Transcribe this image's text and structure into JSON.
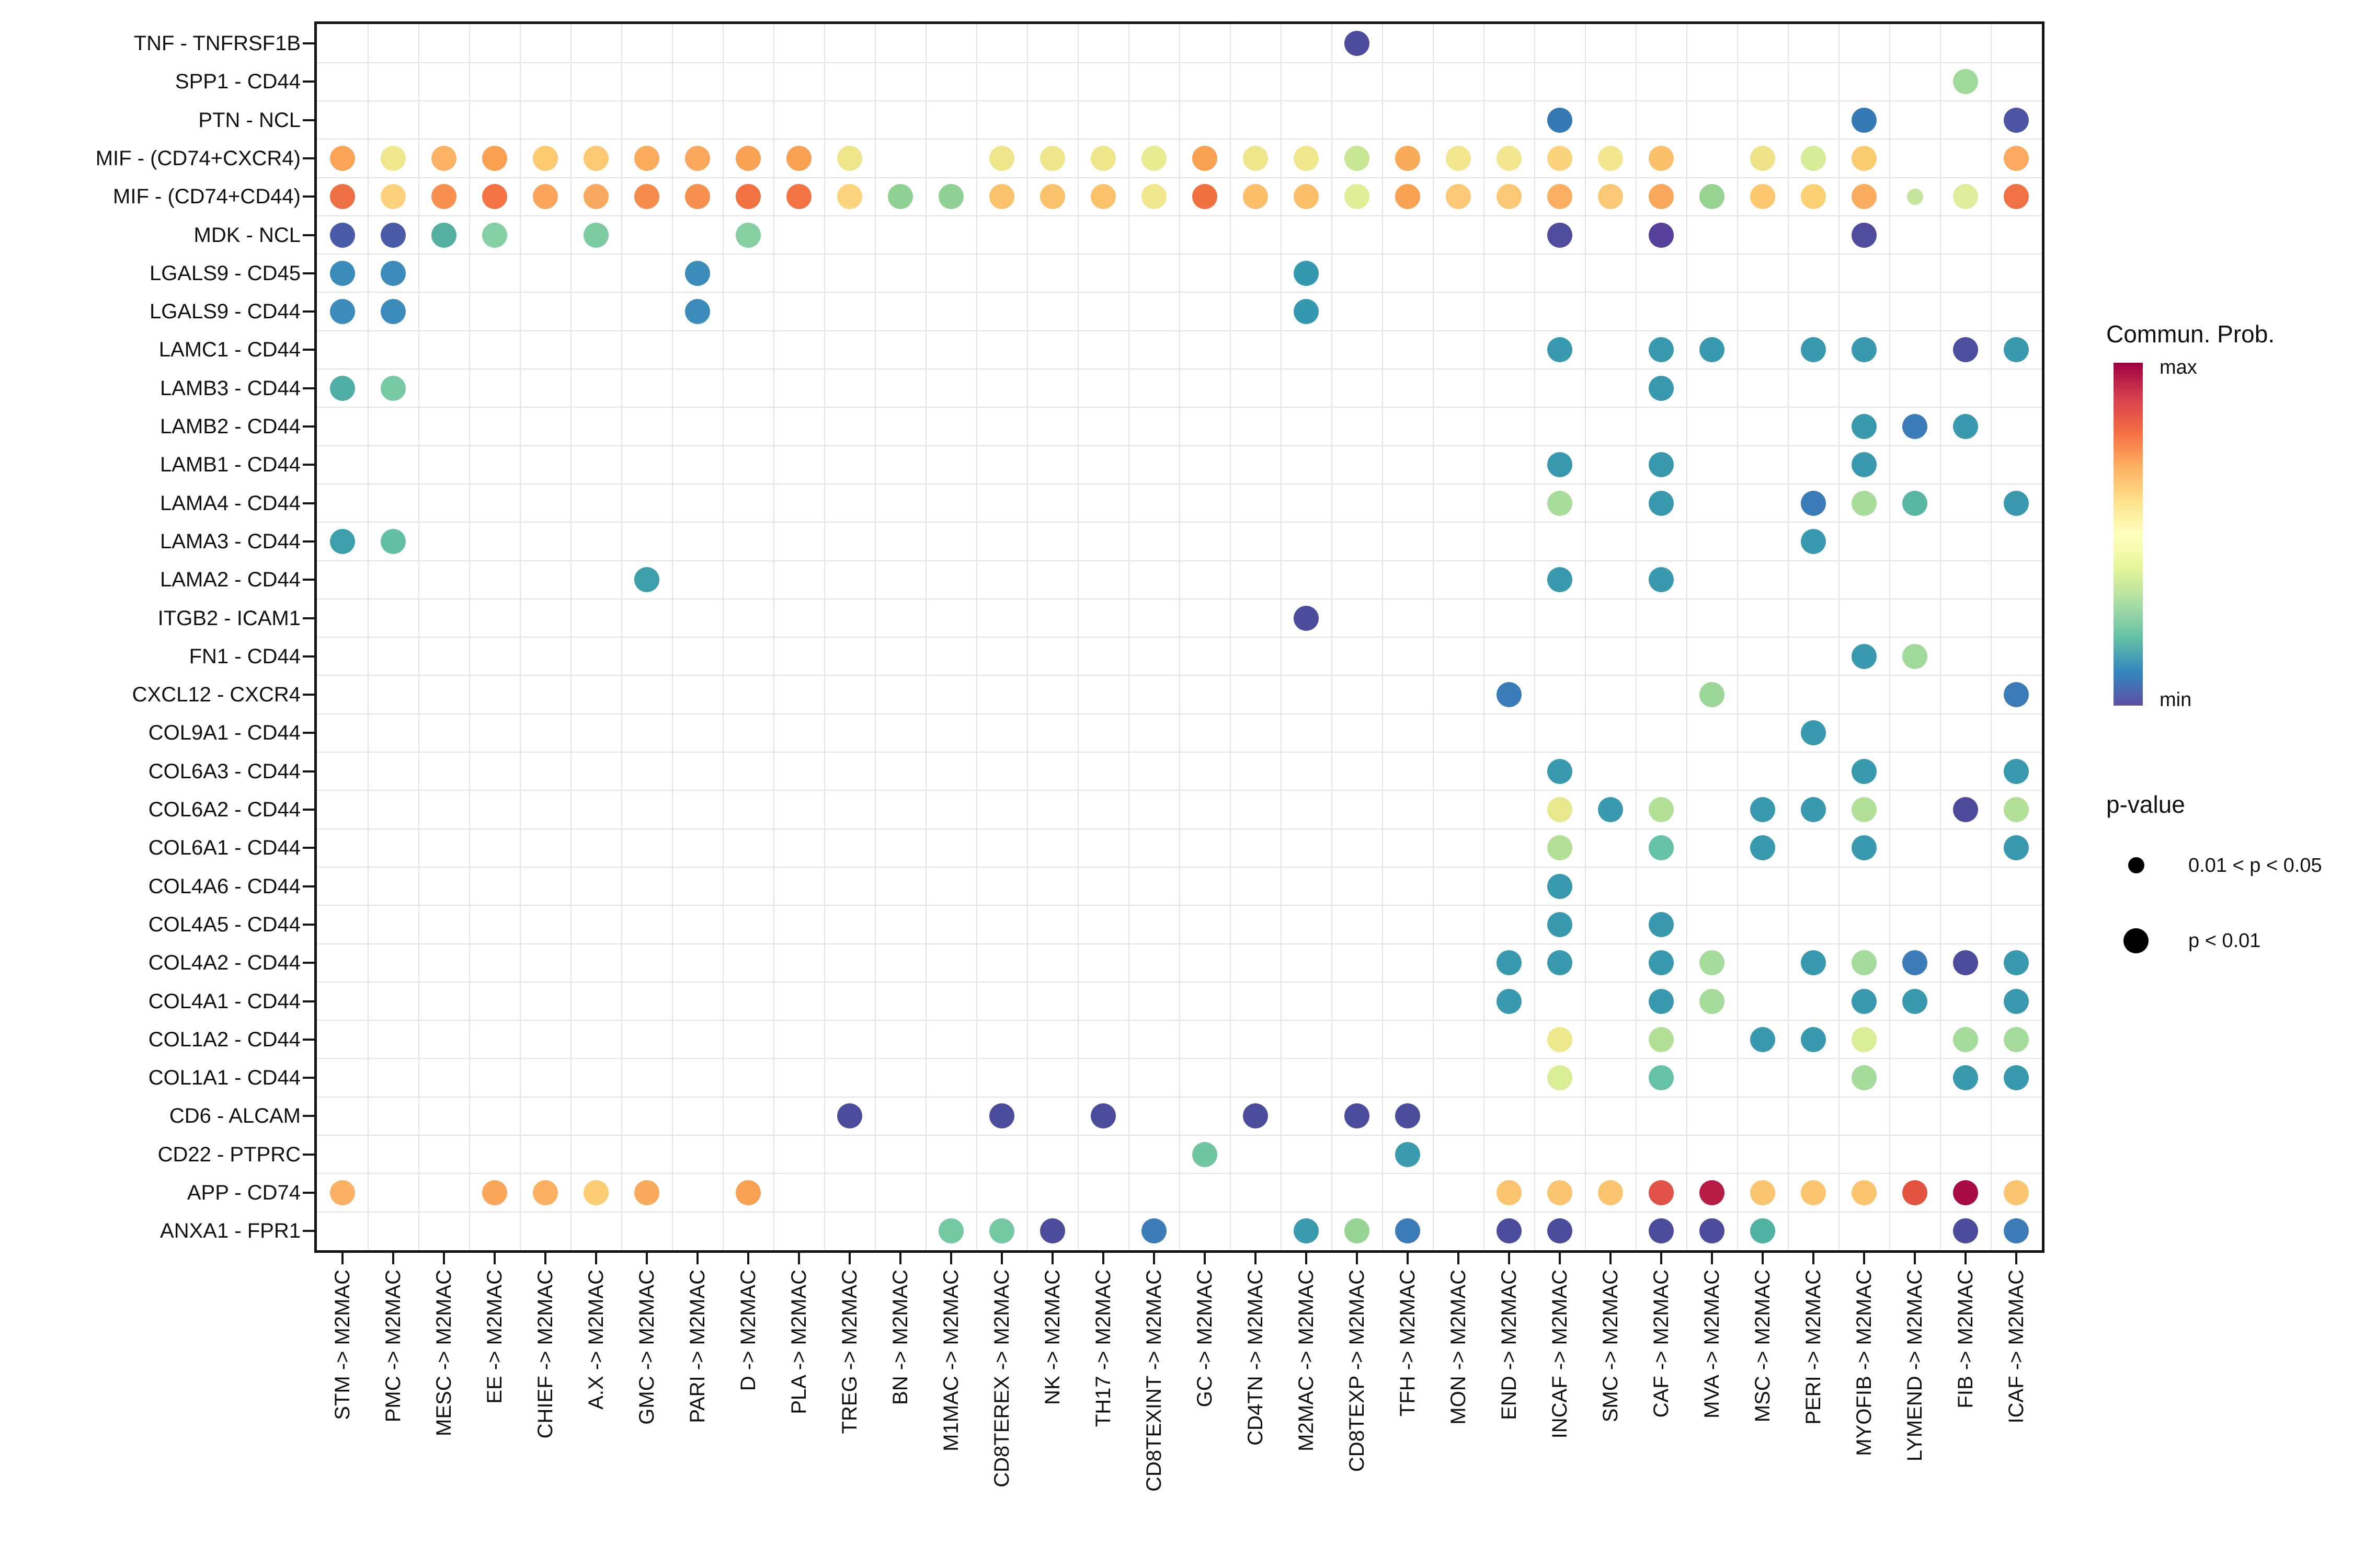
{
  "legend": {
    "colorbar_title": "Commun. Prob.",
    "max_label": "max",
    "min_label": "min",
    "pvalue_title": "p-value",
    "pvalue_small_label": "0.01 < p < 0.05",
    "pvalue_large_label": "p < 0.01",
    "colorbar_stops": [
      "#9E0142",
      "#D53E4F",
      "#F46D43",
      "#FDAE61",
      "#FEE08B",
      "#FFFFBF",
      "#E6F598",
      "#ABDDA4",
      "#66C2A5",
      "#3288BD",
      "#5E4FA2"
    ]
  },
  "chart_data": {
    "type": "scatter",
    "subtype": "bubble-matrix (CellChat ligand-receptor dot plot)",
    "title": "",
    "xlabel": "",
    "ylabel": "",
    "grid": "between-categories",
    "legend_position": "right",
    "color_meaning": "communication probability, Spectral reversed: min=#5E4FA2 (blue-purple) to max=#9E0142 (dark red)",
    "size_meaning": {
      "small": "0.01 < p < 0.05",
      "large": "p < 0.01"
    },
    "rows": [
      "TNF - TNFRSF1B",
      "SPP1 - CD44",
      "PTN - NCL",
      "MIF - (CD74+CXCR4)",
      "MIF - (CD74+CD44)",
      "MDK - NCL",
      "LGALS9 - CD45",
      "LGALS9 - CD44",
      "LAMC1 - CD44",
      "LAMB3 - CD44",
      "LAMB2 - CD44",
      "LAMB1 - CD44",
      "LAMA4 - CD44",
      "LAMA3 - CD44",
      "LAMA2 - CD44",
      "ITGB2 - ICAM1",
      "FN1 - CD44",
      "CXCL12 - CXCR4",
      "COL9A1 - CD44",
      "COL6A3 - CD44",
      "COL6A2 - CD44",
      "COL6A1 - CD44",
      "COL4A6 - CD44",
      "COL4A5 - CD44",
      "COL4A2 - CD44",
      "COL4A1 - CD44",
      "COL1A2 - CD44",
      "COL1A1 - CD44",
      "CD6 - ALCAM",
      "CD22 - PTPRC",
      "APP - CD74",
      "ANXA1 - FPR1"
    ],
    "columns": [
      "STM -> M2MAC",
      "PMC -> M2MAC",
      "MESC -> M2MAC",
      "EE -> M2MAC",
      "CHIEF -> M2MAC",
      "A.X -> M2MAC",
      "GMC -> M2MAC",
      "PARI -> M2MAC",
      "D -> M2MAC",
      "PLA -> M2MAC",
      "TREG -> M2MAC",
      "BN -> M2MAC",
      "M1MAC -> M2MAC",
      "CD8TEREX -> M2MAC",
      "NK -> M2MAC",
      "TH17 -> M2MAC",
      "CD8TEXINT -> M2MAC",
      "GC -> M2MAC",
      "CD4TN -> M2MAC",
      "M2MAC -> M2MAC",
      "CD8TEXP -> M2MAC",
      "TFH -> M2MAC",
      "MON -> M2MAC",
      "END -> M2MAC",
      "INCAF -> M2MAC",
      "SMC -> M2MAC",
      "CAF -> M2MAC",
      "MVA -> M2MAC",
      "MSC -> M2MAC",
      "PERI -> M2MAC",
      "MYOFIB -> M2MAC",
      "LYMEND -> M2MAC",
      "FIB -> M2MAC",
      "ICAF -> M2MAC"
    ],
    "points_format": "[rowIndex, colIndex, colorHex, sizeClass(l=p<0.01, s=0.01<p<0.05)]",
    "points": [
      [
        0,
        20,
        "#4B4C9B",
        "l"
      ],
      [
        1,
        32,
        "#A0DA9A",
        "l"
      ],
      [
        2,
        24,
        "#3579B5",
        "l"
      ],
      [
        2,
        30,
        "#3579B5",
        "l"
      ],
      [
        2,
        33,
        "#4C55A3",
        "l"
      ],
      [
        3,
        0,
        "#FAA558",
        "l"
      ],
      [
        3,
        1,
        "#F0E68B",
        "l"
      ],
      [
        3,
        2,
        "#FBB264",
        "l"
      ],
      [
        3,
        3,
        "#F9A051",
        "l"
      ],
      [
        3,
        4,
        "#FCC96F",
        "l"
      ],
      [
        3,
        5,
        "#FCC973",
        "l"
      ],
      [
        3,
        6,
        "#FAAB5C",
        "l"
      ],
      [
        3,
        7,
        "#FAA85D",
        "l"
      ],
      [
        3,
        8,
        "#F9A254",
        "l"
      ],
      [
        3,
        9,
        "#F9A152",
        "l"
      ],
      [
        3,
        10,
        "#EFE68B",
        "l"
      ],
      [
        3,
        13,
        "#EFE68B",
        "l"
      ],
      [
        3,
        14,
        "#EFE68B",
        "l"
      ],
      [
        3,
        15,
        "#EFE68B",
        "l"
      ],
      [
        3,
        16,
        "#E8EC90",
        "l"
      ],
      [
        3,
        17,
        "#F9A153",
        "l"
      ],
      [
        3,
        18,
        "#EFE68B",
        "l"
      ],
      [
        3,
        19,
        "#F0E78C",
        "l"
      ],
      [
        3,
        20,
        "#C8E795",
        "l"
      ],
      [
        3,
        21,
        "#FAAB5A",
        "l"
      ],
      [
        3,
        22,
        "#F2E78F",
        "l"
      ],
      [
        3,
        23,
        "#F2E78F",
        "l"
      ],
      [
        3,
        24,
        "#FBD37A",
        "l"
      ],
      [
        3,
        25,
        "#F2E78F",
        "l"
      ],
      [
        3,
        26,
        "#FBC06A",
        "l"
      ],
      [
        3,
        28,
        "#EFE289",
        "l"
      ],
      [
        3,
        29,
        "#D7EC96",
        "l"
      ],
      [
        3,
        30,
        "#FBCC6F",
        "l"
      ],
      [
        3,
        33,
        "#FBAA60",
        "l"
      ],
      [
        4,
        0,
        "#F07046",
        "l"
      ],
      [
        4,
        1,
        "#FCD27C",
        "l"
      ],
      [
        4,
        2,
        "#F89150",
        "l"
      ],
      [
        4,
        3,
        "#F37442",
        "l"
      ],
      [
        4,
        4,
        "#FAA55B",
        "l"
      ],
      [
        4,
        5,
        "#FAAA5F",
        "l"
      ],
      [
        4,
        6,
        "#F68C4B",
        "l"
      ],
      [
        4,
        7,
        "#F78F4E",
        "l"
      ],
      [
        4,
        8,
        "#F27141",
        "l"
      ],
      [
        4,
        9,
        "#F27442",
        "l"
      ],
      [
        4,
        10,
        "#FCD47E",
        "l"
      ],
      [
        4,
        11,
        "#90D295",
        "l"
      ],
      [
        4,
        12,
        "#90D295",
        "l"
      ],
      [
        4,
        13,
        "#FBC26C",
        "l"
      ],
      [
        4,
        14,
        "#FBC26C",
        "l"
      ],
      [
        4,
        15,
        "#FBC26C",
        "l"
      ],
      [
        4,
        16,
        "#F0E78C",
        "l"
      ],
      [
        4,
        17,
        "#F0703F",
        "l"
      ],
      [
        4,
        18,
        "#FBBE69",
        "l"
      ],
      [
        4,
        19,
        "#FBBE69",
        "l"
      ],
      [
        4,
        20,
        "#E0EE95",
        "l"
      ],
      [
        4,
        21,
        "#F9A352",
        "l"
      ],
      [
        4,
        22,
        "#FBC876",
        "l"
      ],
      [
        4,
        23,
        "#FBC876",
        "l"
      ],
      [
        4,
        24,
        "#FAAF63",
        "l"
      ],
      [
        4,
        25,
        "#FBC876",
        "l"
      ],
      [
        4,
        26,
        "#FAA95C",
        "l"
      ],
      [
        4,
        27,
        "#97D491",
        "l"
      ],
      [
        4,
        28,
        "#FBC76F",
        "l"
      ],
      [
        4,
        29,
        "#FBD173",
        "l"
      ],
      [
        4,
        30,
        "#FAAD5E",
        "l"
      ],
      [
        4,
        31,
        "#C3E69A",
        "s"
      ],
      [
        4,
        32,
        "#DDED9B",
        "l"
      ],
      [
        4,
        33,
        "#F07143",
        "l"
      ],
      [
        5,
        0,
        "#4A5CA7",
        "l"
      ],
      [
        5,
        1,
        "#4A5CA7",
        "l"
      ],
      [
        5,
        2,
        "#53AFA0",
        "l"
      ],
      [
        5,
        3,
        "#84CFA4",
        "l"
      ],
      [
        5,
        5,
        "#7CCBA1",
        "l"
      ],
      [
        5,
        8,
        "#85CFA0",
        "l"
      ],
      [
        5,
        24,
        "#4F4C9D",
        "l"
      ],
      [
        5,
        26,
        "#55409B",
        "l"
      ],
      [
        5,
        30,
        "#4F4C9D",
        "l"
      ],
      [
        6,
        0,
        "#3C8CBB",
        "l"
      ],
      [
        6,
        1,
        "#3C8CBB",
        "l"
      ],
      [
        6,
        7,
        "#3C8CBB",
        "l"
      ],
      [
        6,
        19,
        "#3598B1",
        "l"
      ],
      [
        7,
        0,
        "#3C8CBB",
        "l"
      ],
      [
        7,
        1,
        "#3C8CBB",
        "l"
      ],
      [
        7,
        7,
        "#3C8CBB",
        "l"
      ],
      [
        7,
        19,
        "#3598B1",
        "l"
      ],
      [
        8,
        24,
        "#399AAF",
        "l"
      ],
      [
        8,
        26,
        "#399AAF",
        "l"
      ],
      [
        8,
        27,
        "#399AAF",
        "l"
      ],
      [
        8,
        29,
        "#399AAF",
        "l"
      ],
      [
        8,
        30,
        "#399AAF",
        "l"
      ],
      [
        8,
        32,
        "#4B4F9E",
        "l"
      ],
      [
        8,
        33,
        "#399AAF",
        "l"
      ],
      [
        9,
        0,
        "#4FAFA6",
        "l"
      ],
      [
        9,
        1,
        "#77CBA4",
        "l"
      ],
      [
        9,
        26,
        "#399AAF",
        "l"
      ],
      [
        10,
        30,
        "#399AAF",
        "l"
      ],
      [
        10,
        31,
        "#3C7CB8",
        "l"
      ],
      [
        10,
        32,
        "#399AAF",
        "l"
      ],
      [
        11,
        24,
        "#399AAF",
        "l"
      ],
      [
        11,
        26,
        "#399AAF",
        "l"
      ],
      [
        11,
        30,
        "#399AAF",
        "l"
      ],
      [
        12,
        24,
        "#A8DC9A",
        "l"
      ],
      [
        12,
        26,
        "#399AAF",
        "l"
      ],
      [
        12,
        29,
        "#3B7CB8",
        "l"
      ],
      [
        12,
        30,
        "#A8DC9A",
        "l"
      ],
      [
        12,
        31,
        "#58B8A4",
        "l"
      ],
      [
        12,
        33,
        "#399AAF",
        "l"
      ],
      [
        13,
        0,
        "#3C9FAC",
        "l"
      ],
      [
        13,
        1,
        "#62BFA2",
        "l"
      ],
      [
        13,
        29,
        "#399AAF",
        "l"
      ],
      [
        14,
        6,
        "#3C9FAC",
        "l"
      ],
      [
        14,
        24,
        "#399AAF",
        "l"
      ],
      [
        14,
        26,
        "#399AAF",
        "l"
      ],
      [
        15,
        19,
        "#4B4C9B",
        "l"
      ],
      [
        16,
        30,
        "#399AAF",
        "l"
      ],
      [
        16,
        31,
        "#A0DA9A",
        "l"
      ],
      [
        17,
        23,
        "#3B7CB8",
        "l"
      ],
      [
        17,
        27,
        "#9AD697",
        "l"
      ],
      [
        17,
        33,
        "#3B7CB8",
        "l"
      ],
      [
        18,
        29,
        "#399AAF",
        "l"
      ],
      [
        19,
        24,
        "#399AAF",
        "l"
      ],
      [
        19,
        30,
        "#399AAF",
        "l"
      ],
      [
        19,
        33,
        "#399AAF",
        "l"
      ],
      [
        20,
        24,
        "#E7E88D",
        "l"
      ],
      [
        20,
        25,
        "#399AAF",
        "l"
      ],
      [
        20,
        26,
        "#B2E097",
        "l"
      ],
      [
        20,
        28,
        "#399AAF",
        "l"
      ],
      [
        20,
        29,
        "#399AAF",
        "l"
      ],
      [
        20,
        30,
        "#B2E097",
        "l"
      ],
      [
        20,
        32,
        "#4D4A9C",
        "l"
      ],
      [
        20,
        33,
        "#B2E097",
        "l"
      ],
      [
        21,
        24,
        "#B2E097",
        "l"
      ],
      [
        21,
        26,
        "#66C2A4",
        "l"
      ],
      [
        21,
        28,
        "#399AAF",
        "l"
      ],
      [
        21,
        30,
        "#399AAF",
        "l"
      ],
      [
        21,
        33,
        "#399AAF",
        "l"
      ],
      [
        22,
        24,
        "#399AAF",
        "l"
      ],
      [
        23,
        24,
        "#399AAF",
        "l"
      ],
      [
        23,
        26,
        "#399AAF",
        "l"
      ],
      [
        24,
        23,
        "#399AAF",
        "l"
      ],
      [
        24,
        24,
        "#399AAF",
        "l"
      ],
      [
        24,
        26,
        "#399AAF",
        "l"
      ],
      [
        24,
        27,
        "#A5DB9B",
        "l"
      ],
      [
        24,
        29,
        "#399AAF",
        "l"
      ],
      [
        24,
        30,
        "#A5DB9B",
        "l"
      ],
      [
        24,
        31,
        "#3C7CB8",
        "l"
      ],
      [
        24,
        32,
        "#4B4C9B",
        "l"
      ],
      [
        24,
        33,
        "#399AAF",
        "l"
      ],
      [
        25,
        23,
        "#399AAF",
        "l"
      ],
      [
        25,
        26,
        "#399AAF",
        "l"
      ],
      [
        25,
        27,
        "#A5DB9B",
        "l"
      ],
      [
        25,
        30,
        "#399AAF",
        "l"
      ],
      [
        25,
        31,
        "#399AAF",
        "l"
      ],
      [
        25,
        33,
        "#399AAF",
        "l"
      ],
      [
        26,
        24,
        "#EDE88C",
        "l"
      ],
      [
        26,
        26,
        "#B2E097",
        "l"
      ],
      [
        26,
        28,
        "#399AAF",
        "l"
      ],
      [
        26,
        29,
        "#399AAF",
        "l"
      ],
      [
        26,
        30,
        "#D9EE94",
        "l"
      ],
      [
        26,
        32,
        "#A5DB9B",
        "l"
      ],
      [
        26,
        33,
        "#A5DB9B",
        "l"
      ],
      [
        27,
        24,
        "#D9EE94",
        "l"
      ],
      [
        27,
        26,
        "#66C2A4",
        "l"
      ],
      [
        27,
        30,
        "#A5DB9B",
        "l"
      ],
      [
        27,
        32,
        "#399AAF",
        "l"
      ],
      [
        27,
        33,
        "#399AAF",
        "l"
      ],
      [
        28,
        10,
        "#4B4C9B",
        "l"
      ],
      [
        28,
        13,
        "#4B4C9B",
        "l"
      ],
      [
        28,
        15,
        "#4B4C9B",
        "l"
      ],
      [
        28,
        18,
        "#4B4C9B",
        "l"
      ],
      [
        28,
        20,
        "#4B4C9B",
        "l"
      ],
      [
        28,
        21,
        "#4B4C9B",
        "l"
      ],
      [
        29,
        17,
        "#6FC6A0",
        "l"
      ],
      [
        29,
        21,
        "#3A9AAE",
        "l"
      ],
      [
        30,
        0,
        "#FBB163",
        "l"
      ],
      [
        30,
        3,
        "#FAA75A",
        "l"
      ],
      [
        30,
        4,
        "#FBB061",
        "l"
      ],
      [
        30,
        5,
        "#FCCD72",
        "l"
      ],
      [
        30,
        6,
        "#FAAA5C",
        "l"
      ],
      [
        30,
        8,
        "#F9A152",
        "l"
      ],
      [
        30,
        23,
        "#FBC46E",
        "l"
      ],
      [
        30,
        24,
        "#FBC46E",
        "l"
      ],
      [
        30,
        25,
        "#FBC46E",
        "l"
      ],
      [
        30,
        26,
        "#E25249",
        "l"
      ],
      [
        30,
        27,
        "#B71C47",
        "l"
      ],
      [
        30,
        28,
        "#FBC46E",
        "l"
      ],
      [
        30,
        29,
        "#FBC46E",
        "l"
      ],
      [
        30,
        30,
        "#FBC46E",
        "l"
      ],
      [
        30,
        31,
        "#E4533F",
        "l"
      ],
      [
        30,
        32,
        "#A90C44",
        "l"
      ],
      [
        30,
        33,
        "#FBC46E",
        "l"
      ],
      [
        31,
        12,
        "#74C8A2",
        "l"
      ],
      [
        31,
        13,
        "#74C8A2",
        "l"
      ],
      [
        31,
        14,
        "#4B4C9B",
        "l"
      ],
      [
        31,
        16,
        "#3C7CB8",
        "l"
      ],
      [
        31,
        19,
        "#3A9AAE",
        "l"
      ],
      [
        31,
        20,
        "#98D594",
        "l"
      ],
      [
        31,
        21,
        "#3C7CB8",
        "l"
      ],
      [
        31,
        23,
        "#4B4C9B",
        "l"
      ],
      [
        31,
        24,
        "#4B4C9B",
        "l"
      ],
      [
        31,
        26,
        "#4B4C9B",
        "l"
      ],
      [
        31,
        27,
        "#4B4C9B",
        "l"
      ],
      [
        31,
        28,
        "#4FB3A4",
        "l"
      ],
      [
        31,
        32,
        "#4B4C9B",
        "l"
      ],
      [
        31,
        33,
        "#3C7CB8",
        "l"
      ]
    ]
  }
}
